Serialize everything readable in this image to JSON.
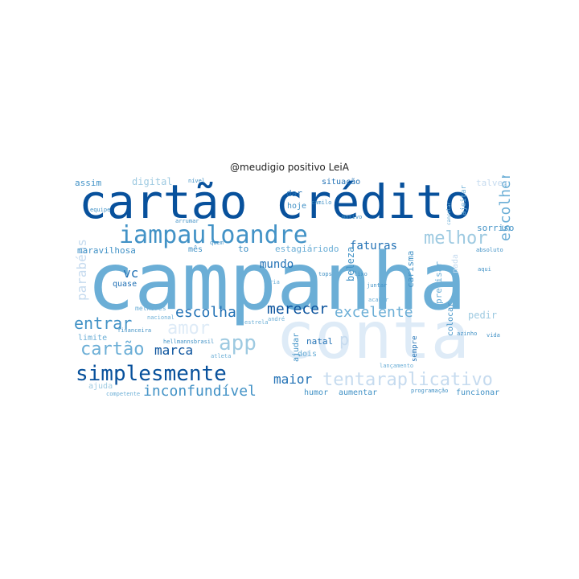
{
  "title": "@meudigio positivo LeiA",
  "palette": [
    "#08306b",
    "#08519c",
    "#2171b5",
    "#4292c6",
    "#6baed6",
    "#9ecae1",
    "#c6dbef",
    "#deebf7"
  ],
  "words": [
    {
      "text": "campanha",
      "c": 4
    },
    {
      "text": "cartão crédito",
      "c": 1
    },
    {
      "text": "conta",
      "c": 7
    },
    {
      "text": "iampauloandre",
      "c": 3
    },
    {
      "text": "simplesmente",
      "c": 1
    },
    {
      "text": "tentaraplicativo",
      "c": 6
    },
    {
      "text": "melhor",
      "c": 5
    },
    {
      "text": "cartão",
      "c": 4
    },
    {
      "text": "entrar",
      "c": 3
    },
    {
      "text": "app",
      "c": 5
    },
    {
      "text": "amor",
      "c": 7
    },
    {
      "text": "inconfundível",
      "c": 3
    },
    {
      "text": "escolha",
      "c": 2
    },
    {
      "text": "merecer",
      "c": 1
    },
    {
      "text": "excelente",
      "c": 4
    },
    {
      "text": "escolher",
      "c": 4
    },
    {
      "text": "parabéns",
      "c": 6
    },
    {
      "text": "marca",
      "c": 1
    },
    {
      "text": "maior",
      "c": 2
    },
    {
      "text": "mundo",
      "c": 2
    },
    {
      "text": "vc",
      "c": 2
    },
    {
      "text": "faturas",
      "c": 2
    },
    {
      "text": "digital",
      "c": 5
    },
    {
      "text": "assim",
      "c": 3
    },
    {
      "text": "maravilhosa",
      "c": 3
    },
    {
      "text": "estagiáriodo",
      "c": 4
    },
    {
      "text": "beleza",
      "c": 3
    },
    {
      "text": "carisma",
      "c": 3
    },
    {
      "text": "precisar",
      "c": 4
    },
    {
      "text": "colocar",
      "c": 3
    },
    {
      "text": "sorriso",
      "c": 3
    },
    {
      "text": "pedir",
      "c": 5
    },
    {
      "text": "natal",
      "c": 2
    },
    {
      "text": "aumentar",
      "c": 3
    },
    {
      "text": "funcionar",
      "c": 3
    },
    {
      "text": "situação",
      "c": 2
    },
    {
      "text": "hoje",
      "c": 3
    },
    {
      "text": "dar",
      "c": 2
    },
    {
      "text": "ajudar",
      "c": 3
    },
    {
      "text": "dois",
      "c": 4
    },
    {
      "text": "sempre",
      "c": 2
    },
    {
      "text": "humor",
      "c": 3
    },
    {
      "text": "ajuda",
      "c": 5
    },
    {
      "text": "limite",
      "c": 4
    },
    {
      "text": "quase",
      "c": 2
    },
    {
      "text": "mês",
      "c": 3
    },
    {
      "text": "melhores",
      "c": 4
    },
    {
      "text": "talvez",
      "c": 6
    },
    {
      "text": "ajeitar",
      "c": 4
    },
    {
      "text": "nada",
      "c": 6
    },
    {
      "text": "p",
      "c": 6
    },
    {
      "text": "nível",
      "c": 3
    },
    {
      "text": "equipe",
      "c": 3
    },
    {
      "text": "arrumar",
      "c": 3
    },
    {
      "text": "motivo",
      "c": 3
    },
    {
      "text": "camilo",
      "c": 3
    },
    {
      "text": "tops",
      "c": 3
    },
    {
      "text": "lixo",
      "c": 3
    },
    {
      "text": "juntar",
      "c": 3
    },
    {
      "text": "acabar",
      "c": 4
    },
    {
      "text": "programação",
      "c": 3
    },
    {
      "text": "competente",
      "c": 4
    },
    {
      "text": "azinho",
      "c": 3
    },
    {
      "text": "vida",
      "c": 3
    },
    {
      "text": "aqui",
      "c": 3
    },
    {
      "text": "absoluto",
      "c": 3
    },
    {
      "text": "financeira",
      "c": 3
    },
    {
      "text": "hellmannsbrasil",
      "c": 3
    },
    {
      "text": "nacional",
      "c": 4
    },
    {
      "text": "atleta",
      "c": 4
    },
    {
      "text": "estrela",
      "c": 4
    },
    {
      "text": "andré",
      "c": 4
    },
    {
      "text": "iria",
      "c": 4
    },
    {
      "text": "quem",
      "c": 3
    },
    {
      "text": "lançamento",
      "c": 4
    },
    {
      "text": "to",
      "c": 3
    },
    {
      "text": "cancelar",
      "c": 4
    }
  ]
}
